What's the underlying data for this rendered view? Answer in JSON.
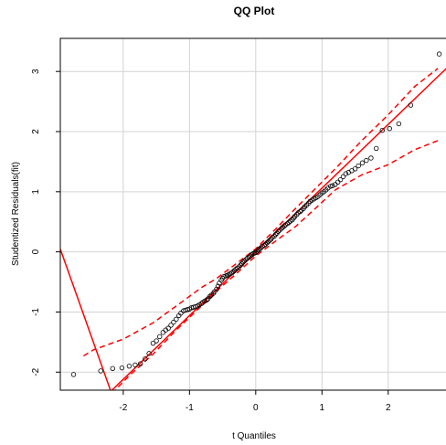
{
  "chart_data": {
    "type": "scatter",
    "title": "QQ Plot",
    "xlabel": "t Quantiles",
    "ylabel": "Studentized Residuals(fit)",
    "xlim": [
      -2.95,
      2.9
    ],
    "ylim": [
      -2.3,
      3.55
    ],
    "xticks": [
      -2,
      -1,
      0,
      1,
      2
    ],
    "yticks": [
      -2,
      -1,
      0,
      1,
      2,
      3
    ],
    "grid": true,
    "colors": {
      "points": "#000000",
      "lines": "#ff0000",
      "grid": "#d3d3d3",
      "frame": "#000000"
    },
    "points": [
      [
        -2.75,
        -2.04
      ],
      [
        -2.34,
        -1.98
      ],
      [
        -2.16,
        -1.94
      ],
      [
        -2.02,
        -1.93
      ],
      [
        -1.91,
        -1.9
      ],
      [
        -1.82,
        -1.88
      ],
      [
        -1.74,
        -1.86
      ],
      [
        -1.67,
        -1.78
      ],
      [
        -1.61,
        -1.69
      ],
      [
        -1.55,
        -1.52
      ],
      [
        -1.5,
        -1.48
      ],
      [
        -1.45,
        -1.41
      ],
      [
        -1.4,
        -1.34
      ],
      [
        -1.36,
        -1.3
      ],
      [
        -1.32,
        -1.27
      ],
      [
        -1.28,
        -1.22
      ],
      [
        -1.24,
        -1.17
      ],
      [
        -1.2,
        -1.12
      ],
      [
        -1.16,
        -1.06
      ],
      [
        -1.13,
        -1.02
      ],
      [
        -1.09,
        -0.98
      ],
      [
        -1.06,
        -0.97
      ],
      [
        -1.03,
        -0.96
      ],
      [
        -1.0,
        -0.95
      ],
      [
        -0.97,
        -0.93
      ],
      [
        -0.94,
        -0.92
      ],
      [
        -0.91,
        -0.91
      ],
      [
        -0.88,
        -0.9
      ],
      [
        -0.85,
        -0.88
      ],
      [
        -0.82,
        -0.86
      ],
      [
        -0.8,
        -0.84
      ],
      [
        -0.77,
        -0.82
      ],
      [
        -0.74,
        -0.8
      ],
      [
        -0.72,
        -0.78
      ],
      [
        -0.69,
        -0.74
      ],
      [
        -0.67,
        -0.72
      ],
      [
        -0.64,
        -0.69
      ],
      [
        -0.62,
        -0.66
      ],
      [
        -0.59,
        -0.62
      ],
      [
        -0.57,
        -0.57
      ],
      [
        -0.55,
        -0.52
      ],
      [
        -0.52,
        -0.47
      ],
      [
        -0.5,
        -0.44
      ],
      [
        -0.48,
        -0.41
      ],
      [
        -0.45,
        -0.4
      ],
      [
        -0.43,
        -0.39
      ],
      [
        -0.41,
        -0.38
      ],
      [
        -0.39,
        -0.36
      ],
      [
        -0.36,
        -0.35
      ],
      [
        -0.34,
        -0.33
      ],
      [
        -0.32,
        -0.31
      ],
      [
        -0.3,
        -0.29
      ],
      [
        -0.28,
        -0.27
      ],
      [
        -0.25,
        -0.25
      ],
      [
        -0.23,
        -0.22
      ],
      [
        -0.21,
        -0.2
      ],
      [
        -0.19,
        -0.17
      ],
      [
        -0.17,
        -0.15
      ],
      [
        -0.15,
        -0.13
      ],
      [
        -0.13,
        -0.11
      ],
      [
        -0.1,
        -0.09
      ],
      [
        -0.08,
        -0.07
      ],
      [
        -0.06,
        -0.05
      ],
      [
        -0.04,
        -0.03
      ],
      [
        -0.02,
        -0.02
      ],
      [
        0.0,
        -0.01
      ],
      [
        0.02,
        0.01
      ],
      [
        0.04,
        0.03
      ],
      [
        0.06,
        0.05
      ],
      [
        0.08,
        0.07
      ],
      [
        0.1,
        0.09
      ],
      [
        0.13,
        0.11
      ],
      [
        0.15,
        0.13
      ],
      [
        0.17,
        0.15
      ],
      [
        0.19,
        0.17
      ],
      [
        0.21,
        0.19
      ],
      [
        0.23,
        0.21
      ],
      [
        0.25,
        0.24
      ],
      [
        0.28,
        0.26
      ],
      [
        0.3,
        0.29
      ],
      [
        0.32,
        0.31
      ],
      [
        0.34,
        0.34
      ],
      [
        0.36,
        0.36
      ],
      [
        0.39,
        0.39
      ],
      [
        0.41,
        0.41
      ],
      [
        0.43,
        0.43
      ],
      [
        0.45,
        0.45
      ],
      [
        0.48,
        0.47
      ],
      [
        0.5,
        0.49
      ],
      [
        0.52,
        0.51
      ],
      [
        0.55,
        0.53
      ],
      [
        0.57,
        0.56
      ],
      [
        0.59,
        0.59
      ],
      [
        0.62,
        0.62
      ],
      [
        0.64,
        0.65
      ],
      [
        0.67,
        0.67
      ],
      [
        0.69,
        0.69
      ],
      [
        0.72,
        0.72
      ],
      [
        0.74,
        0.75
      ],
      [
        0.77,
        0.78
      ],
      [
        0.8,
        0.81
      ],
      [
        0.82,
        0.84
      ],
      [
        0.85,
        0.86
      ],
      [
        0.88,
        0.88
      ],
      [
        0.91,
        0.9
      ],
      [
        0.94,
        0.92
      ],
      [
        0.97,
        0.95
      ],
      [
        1.0,
        0.98
      ],
      [
        1.03,
        1.0
      ],
      [
        1.06,
        1.03
      ],
      [
        1.09,
        1.06
      ],
      [
        1.13,
        1.09
      ],
      [
        1.16,
        1.1
      ],
      [
        1.2,
        1.12
      ],
      [
        1.24,
        1.16
      ],
      [
        1.28,
        1.2
      ],
      [
        1.32,
        1.25
      ],
      [
        1.36,
        1.3
      ],
      [
        1.4,
        1.32
      ],
      [
        1.45,
        1.35
      ],
      [
        1.5,
        1.38
      ],
      [
        1.55,
        1.43
      ],
      [
        1.61,
        1.48
      ],
      [
        1.67,
        1.52
      ],
      [
        1.74,
        1.56
      ],
      [
        1.82,
        1.72
      ],
      [
        1.91,
        2.02
      ],
      [
        2.02,
        2.05
      ],
      [
        2.16,
        2.13
      ],
      [
        2.34,
        2.44
      ],
      [
        2.77,
        3.29
      ]
    ],
    "fit_line": {
      "intercept": 0.0,
      "slope": 1.06
    },
    "lower_fit_line": {
      "intercept": -9.1,
      "slope": -3.1
    },
    "ci_upper": [
      [
        -2.6,
        -1.73
      ],
      [
        -2.45,
        -1.63
      ],
      [
        -2.0,
        -1.45
      ],
      [
        -1.55,
        -1.18
      ],
      [
        -1.2,
        -0.9
      ],
      [
        -0.8,
        -0.58
      ],
      [
        -0.6,
        -0.45
      ],
      [
        -0.3,
        -0.2
      ],
      [
        0.0,
        0.05
      ],
      [
        0.3,
        0.38
      ],
      [
        0.6,
        0.72
      ],
      [
        0.9,
        1.05
      ],
      [
        1.2,
        1.38
      ],
      [
        1.6,
        1.85
      ],
      [
        2.0,
        2.28
      ],
      [
        2.4,
        2.75
      ],
      [
        2.75,
        3.05
      ]
    ],
    "ci_lower": [
      [
        -2.6,
        -2.95
      ],
      [
        -2.3,
        -2.5
      ],
      [
        -1.9,
        -2.05
      ],
      [
        -1.55,
        -1.7
      ],
      [
        -1.2,
        -1.3
      ],
      [
        -0.8,
        -0.88
      ],
      [
        -0.6,
        -0.66
      ],
      [
        -0.3,
        -0.37
      ],
      [
        0.0,
        -0.07
      ],
      [
        0.3,
        0.18
      ],
      [
        0.6,
        0.42
      ],
      [
        0.9,
        0.72
      ],
      [
        1.2,
        1.03
      ],
      [
        1.6,
        1.28
      ],
      [
        2.0,
        1.45
      ],
      [
        2.4,
        1.7
      ],
      [
        2.75,
        1.85
      ]
    ]
  }
}
